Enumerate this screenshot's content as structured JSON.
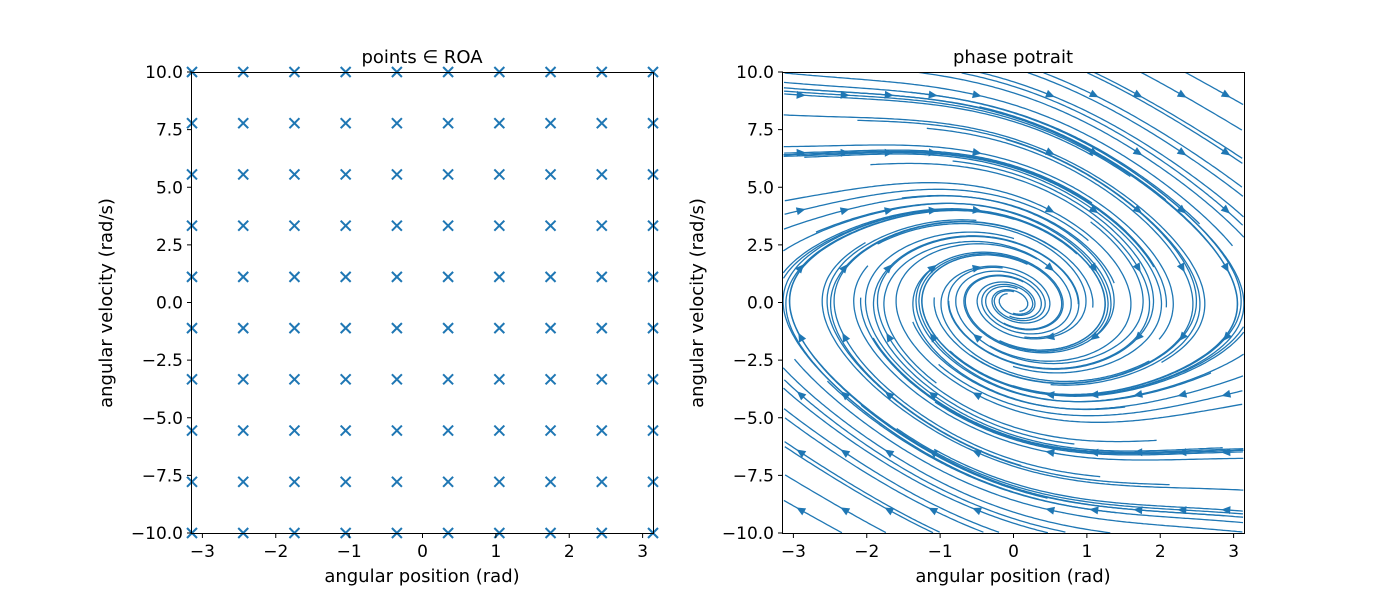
{
  "chart_data": [
    {
      "type": "scatter",
      "title": "points ∈ ROA",
      "xlabel": "angular position (rad)",
      "ylabel": "angular velocity (rad/s)",
      "xlim": [
        -3.14159,
        3.14159
      ],
      "ylim": [
        -10,
        10
      ],
      "xticks": [
        -3,
        -2,
        -1,
        0,
        1,
        2,
        3
      ],
      "yticks": [
        -10.0,
        -7.5,
        -5.0,
        -2.5,
        0.0,
        2.5,
        5.0,
        7.5,
        10.0
      ],
      "xtick_labels": [
        "−3",
        "−2",
        "−1",
        "0",
        "1",
        "2",
        "3"
      ],
      "ytick_labels": [
        "−10.0",
        "−7.5",
        "−5.0",
        "−2.5",
        "0.0",
        "2.5",
        "5.0",
        "7.5",
        "10.0"
      ],
      "marker": "x",
      "color": "#1f77b4",
      "x": [
        -3.14159,
        -2.44346,
        -1.74533,
        -1.0472,
        -0.34907,
        0.34907,
        1.0472,
        1.74533,
        2.44346,
        3.14159
      ],
      "y": [
        -10.0,
        -7.7778,
        -5.5556,
        -3.3333,
        -1.1111,
        1.1111,
        3.3333,
        5.5556,
        7.7778,
        10.0
      ],
      "grid": "cartesian product of x and y"
    },
    {
      "type": "streamplot",
      "title": "phase potrait",
      "xlabel": "angular position (rad)",
      "ylabel": "angular velocity (rad/s)",
      "xlim": [
        -3.14159,
        3.14159
      ],
      "ylim": [
        -10,
        10
      ],
      "xticks": [
        -3,
        -2,
        -1,
        0,
        1,
        2,
        3
      ],
      "yticks": [
        -10.0,
        -7.5,
        -5.0,
        -2.5,
        0.0,
        2.5,
        5.0,
        7.5,
        10.0
      ],
      "xtick_labels": [
        "−3",
        "−2",
        "−1",
        "0",
        "1",
        "2",
        "3"
      ],
      "ytick_labels": [
        "−10.0",
        "−7.5",
        "−5.0",
        "−2.5",
        "0.0",
        "2.5",
        "5.0",
        "7.5",
        "10.0"
      ],
      "color": "#1f77b4"
    }
  ]
}
